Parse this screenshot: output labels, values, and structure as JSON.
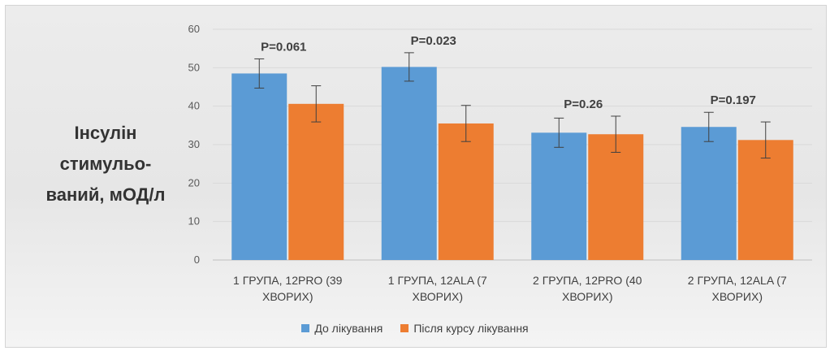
{
  "chart_data": {
    "type": "bar",
    "ylabel": [
      "Інсулін",
      "стимульо-",
      "ваний, мОД/л"
    ],
    "ylim": [
      0,
      60
    ],
    "yticks": [
      0,
      10,
      20,
      30,
      40,
      50,
      60
    ],
    "grid": true,
    "legend_position": "bottom",
    "categories": [
      [
        "1 ГРУПА, 12PRO (39",
        "ХВОРИХ)"
      ],
      [
        "1 ГРУПА, 12ALA (7",
        "ХВОРИХ)"
      ],
      [
        "2 ГРУПА, 12PRO (40",
        "ХВОРИХ)"
      ],
      [
        "2 ГРУПА, 12ALA (7",
        "ХВОРИХ)"
      ]
    ],
    "series": [
      {
        "name": "До лікування",
        "color": "#5b9bd5",
        "values": [
          48.5,
          50.2,
          33.1,
          34.6
        ],
        "errors": [
          3.8,
          3.7,
          3.8,
          3.8
        ]
      },
      {
        "name": "Після курсу лікування",
        "color": "#ed7d31",
        "values": [
          40.6,
          35.5,
          32.7,
          31.2
        ],
        "errors": [
          4.7,
          4.7,
          4.7,
          4.7
        ]
      }
    ],
    "annotations": [
      "P=0.061",
      "P=0.023",
      "P=0.26",
      "P=0.197"
    ]
  }
}
